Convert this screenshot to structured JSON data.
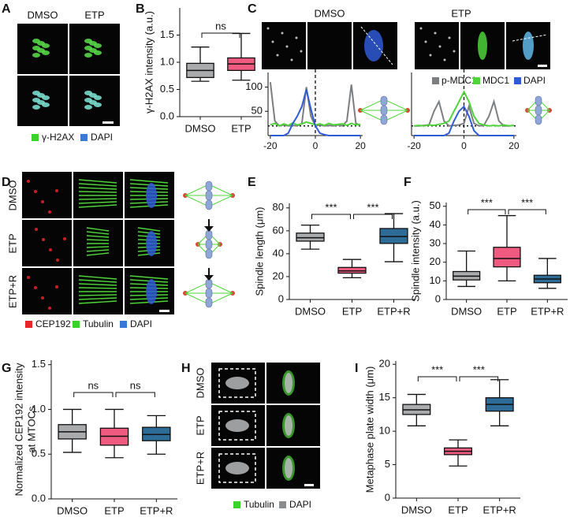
{
  "panel_letters": [
    "A",
    "B",
    "C",
    "D",
    "E",
    "F",
    "G",
    "H",
    "I"
  ],
  "images": {
    "a_columns": [
      "DMSO",
      "ETP"
    ],
    "a_legend": [
      {
        "label": "γ-H2AX",
        "color": "#39d32a"
      },
      {
        "label": "DAPI",
        "color": "#3a78d8"
      }
    ],
    "c_columns": [
      "DMSO",
      "ETP"
    ],
    "d_rows": [
      "DMSO",
      "ETP",
      "ETP+R"
    ],
    "d_legend": [
      {
        "label": "CEP192",
        "color": "#e8262a"
      },
      {
        "label": "Tubulin",
        "color": "#39d32a"
      },
      {
        "label": "DAPI",
        "color": "#3a78d8"
      }
    ],
    "h_rows": [
      "DMSO",
      "ETP",
      "ETP+R"
    ],
    "h_legend": [
      {
        "label": "Tubulin",
        "color": "#39d32a"
      },
      {
        "label": "DAPI",
        "color": "#8a8c8e"
      }
    ]
  },
  "chart_data": [
    {
      "type": "box",
      "ylabel": "γ-H2AX intensity (a.u.)",
      "categories": [
        "DMSO",
        "ETP"
      ],
      "colors": [
        "#a9abad",
        "#ef5b80"
      ],
      "min": [
        0.65,
        0.67
      ],
      "q1": [
        0.72,
        0.85
      ],
      "median": [
        0.85,
        0.97
      ],
      "q3": [
        0.98,
        1.08
      ],
      "max": [
        1.28,
        1.53
      ],
      "ylim": [
        0,
        2.0
      ],
      "yticks": [
        {
          "value": 0,
          "label": "0.0"
        },
        0.5,
        {
          "value": 1,
          "label": "1.0"
        },
        1.5
      ],
      "annotations": [
        "ns"
      ]
    },
    {
      "type": "line",
      "x": [
        -20,
        -18,
        -16,
        -14,
        -12,
        -10,
        -8,
        -6,
        -4,
        -2,
        0,
        2,
        4,
        6,
        8,
        10,
        12,
        14,
        16,
        18,
        20
      ],
      "xlim": [
        -21,
        21
      ],
      "xticks": [
        -20,
        0,
        20
      ],
      "ylim": [
        0,
        130
      ],
      "yticks": [
        50,
        100
      ],
      "hline": 20,
      "vline": 0,
      "series": [
        {
          "color": "#7c7e80",
          "values": [
            110,
            30,
            20,
            22,
            20,
            21,
            20,
            25,
            100,
            40,
            20,
            22,
            20,
            21,
            20,
            22,
            20,
            30,
            105,
            25,
            21
          ]
        },
        {
          "color": "#4fd43a",
          "values": [
            22,
            25,
            20,
            24,
            21,
            26,
            22,
            24,
            28,
            25,
            22,
            24,
            21,
            25,
            22,
            23,
            24,
            21,
            25,
            22,
            23
          ]
        },
        {
          "color": "#2f5bd6",
          "values": [
            0,
            0,
            0,
            0,
            5,
            25,
            40,
            60,
            95,
            55,
            20,
            5,
            2,
            0,
            0,
            0,
            0,
            0,
            0,
            0,
            0
          ]
        }
      ]
    },
    {
      "type": "line",
      "x": [
        -20,
        -18,
        -16,
        -14,
        -12,
        -10,
        -8,
        -6,
        -4,
        -2,
        0,
        2,
        4,
        6,
        8,
        10,
        12,
        14,
        16,
        18,
        20
      ],
      "xlim": [
        -21,
        21
      ],
      "xticks": [
        -20,
        0,
        20
      ],
      "ylim": [
        0,
        130
      ],
      "hline": 20,
      "vline": 0,
      "legend": "top",
      "series": [
        {
          "name": "p-MDC1",
          "color": "#7c7e80",
          "values": [
            20,
            20,
            21,
            22,
            50,
            70,
            30,
            20,
            21,
            22,
            25,
            60,
            25,
            20,
            21,
            40,
            70,
            30,
            20,
            20,
            21
          ]
        },
        {
          "name": "MDC1",
          "color": "#4fd43a",
          "values": [
            20,
            21,
            20,
            22,
            21,
            23,
            25,
            30,
            50,
            70,
            90,
            70,
            40,
            25,
            22,
            20,
            21,
            20,
            22,
            20,
            21
          ]
        },
        {
          "name": "DAPI",
          "color": "#2f5bd6",
          "values": [
            0,
            0,
            0,
            0,
            0,
            0,
            0,
            5,
            30,
            50,
            60,
            40,
            10,
            0,
            0,
            0,
            0,
            0,
            0,
            0,
            0
          ]
        }
      ]
    },
    {
      "type": "box",
      "ylabel": "Spindle length (μm)",
      "categories": [
        "DMSO",
        "ETP",
        "ETP+R"
      ],
      "colors": [
        "#a9abad",
        "#ef5b80",
        "#2e6c98"
      ],
      "min": [
        44,
        19,
        33
      ],
      "q1": [
        51,
        23,
        49
      ],
      "median": [
        54,
        25,
        55
      ],
      "q3": [
        58,
        28,
        62
      ],
      "max": [
        65,
        35,
        75
      ],
      "ylim": [
        0,
        84
      ],
      "yticks": [
        0,
        20,
        40,
        60,
        80
      ],
      "annotations": [
        "***",
        "***"
      ]
    },
    {
      "type": "box",
      "ylabel": "Spindle intensity (a.u.)",
      "categories": [
        "DMSO",
        "ETP",
        "ETP+R"
      ],
      "colors": [
        "#a9abad",
        "#ef5b80",
        "#2e6c98"
      ],
      "min": [
        7,
        10,
        6
      ],
      "q1": [
        10.5,
        17.5,
        9
      ],
      "median": [
        12.5,
        22,
        11
      ],
      "q3": [
        15,
        28,
        13
      ],
      "max": [
        26,
        45,
        22
      ],
      "ylim": [
        0,
        52
      ],
      "yticks": [
        0,
        10,
        20,
        30,
        40,
        50
      ],
      "annotations": [
        "***",
        "***"
      ]
    },
    {
      "type": "box",
      "ylabel": [
        "Normalized CEP192 intensity",
        "at MTOCs"
      ],
      "categories": [
        "DMSO",
        "ETP",
        "ETP+R"
      ],
      "colors": [
        "#a9abad",
        "#ef5b80",
        "#2e6c98"
      ],
      "min": [
        0.52,
        0.46,
        0.5
      ],
      "q1": [
        0.67,
        0.6,
        0.65
      ],
      "median": [
        0.75,
        0.7,
        0.72
      ],
      "q3": [
        0.83,
        0.79,
        0.8
      ],
      "max": [
        1.0,
        1.0,
        0.93
      ],
      "ylim": [
        0,
        1.55
      ],
      "yticks": [
        {
          "value": 0,
          "label": "0.0"
        },
        0.5,
        {
          "value": 1,
          "label": "1.0"
        },
        1.5
      ],
      "annotations": [
        "ns",
        "ns"
      ]
    },
    {
      "type": "box",
      "ylabel": "Metaphase plate width (μm)",
      "categories": [
        "DMSO",
        "ETP",
        "ETP+R"
      ],
      "colors": [
        "#a9abad",
        "#ef5b80",
        "#2e6c98"
      ],
      "min": [
        10.8,
        4.8,
        10.8
      ],
      "q1": [
        12.5,
        6.5,
        13
      ],
      "median": [
        13.2,
        7,
        14
      ],
      "q3": [
        14,
        7.5,
        15
      ],
      "max": [
        15.5,
        8.7,
        17.7
      ],
      "ylim": [
        0,
        20.5
      ],
      "yticks": [
        0,
        5,
        10,
        15,
        20
      ],
      "annotations": [
        "***",
        "***"
      ]
    }
  ]
}
